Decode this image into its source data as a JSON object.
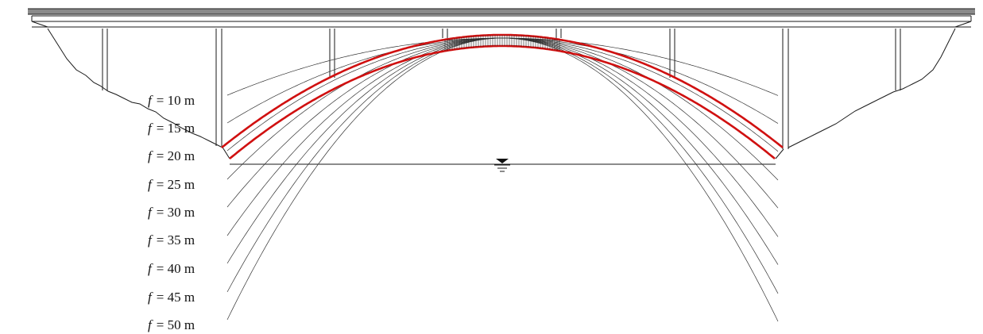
{
  "diagram": {
    "label_symbol": "f",
    "rise_labels": [
      "= 10 m",
      "= 15 m",
      "= 20 m",
      "= 25 m",
      "= 30 m",
      "= 35 m",
      "= 40 m",
      "= 45 m",
      "= 50 m"
    ],
    "colors": {
      "line": "#1a1a1a",
      "curve": "#333333",
      "arch": "#d01010",
      "background": "#ffffff"
    },
    "icons": [
      "water-level-icon"
    ]
  }
}
